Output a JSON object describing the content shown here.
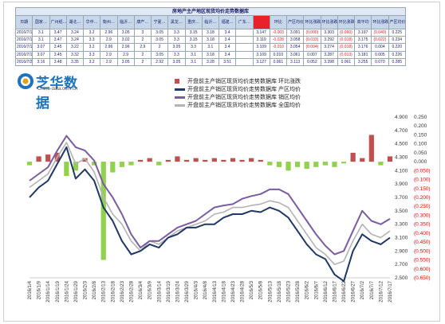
{
  "table": {
    "title": "房地产主产地区现货均价走势数据库",
    "headers": [
      "日期",
      "国家…",
      "广州纸…",
      "湖北…",
      "华中…",
      "衡州…",
      "临沂…",
      "康产…",
      "宁夏…",
      "黑龙…",
      "重庆…",
      "临沂…",
      "福建…",
      "广东…",
      "",
      "环比",
      "产区均价",
      "环比涨跌",
      "环比涨跌",
      "环比涨跌",
      "高平均",
      "环比涨跌",
      "产区均价"
    ],
    "highlight_header_index": 14,
    "rows": [
      [
        "2016/7/14",
        "3.1",
        "3.47",
        "3.24",
        "3.2",
        "2.96",
        "3.05",
        "3",
        "3.05",
        "3.3",
        "3.15",
        "3.18",
        "3.4",
        "",
        "3.147",
        "-0.003",
        "3.091",
        "(0.000)",
        "3.303",
        "(0.060)",
        "3.197",
        "(0.040)",
        "0.225"
      ],
      [
        "2016/7/15",
        "3.1",
        "3.47",
        "3.24",
        "3.3",
        "2.9",
        "3.02",
        "2",
        "3.05",
        "3.3",
        "3.15",
        "3.18",
        "3.4",
        "",
        "3.119",
        "-0.028",
        "3.058",
        "(0.033)",
        "3.292",
        "(0.018)",
        "3.175",
        "(0.022)",
        "0.234"
      ],
      [
        "2016/7/18",
        "3.07",
        "3.45",
        "3.22",
        "3.2",
        "2.96",
        "2.96",
        "2.9",
        "2",
        "3.05",
        "3.3",
        "3.1",
        "3.4",
        "",
        "3.109",
        "-0.010",
        "3.054",
        "(0.004)",
        "3.274",
        "(0.018)",
        "3.176",
        "0.004",
        "0.220"
      ],
      [
        "2016/7/19",
        "3.07",
        "3.45",
        "3.32",
        "3.3",
        "2.9",
        "2.9",
        "2",
        "3.05",
        "3.3",
        "3.1",
        "3.18",
        "3.4",
        "",
        "3.109",
        "0.010",
        "3.061",
        "0.007",
        "3.287",
        "(0.013)",
        "3.181",
        "0.005",
        "0.226"
      ],
      [
        "2016/7/20",
        "3.16",
        "3.48",
        "3.35",
        "3.2",
        "2.9",
        "3.05",
        "2",
        "2.92",
        "3.05",
        "3.1",
        "3.28",
        "3.51",
        "",
        "3.127",
        "0.061",
        "3.113",
        "0.052",
        "3.398",
        "0.061",
        "3.255",
        "0.070",
        "0.285"
      ]
    ]
  },
  "logo": {
    "name": "芝华数据",
    "url": "China-data.com.cn"
  },
  "legend": [
    {
      "label": "开盘前主产销区现货均价走势数据库 环比涨跌",
      "color": "#c0504d",
      "kind": "bar"
    },
    {
      "label": "开盘前主产销区现货均价走势数据库 产区均价",
      "color": "#1f3864",
      "kind": "line"
    },
    {
      "label": "开盘前主产销区现货均价走势数据库 销区均价",
      "color": "#7a5ca0",
      "kind": "line"
    },
    {
      "label": "开盘前主产销区现货均价走势数据库 全国均价",
      "color": "#b3b3b3",
      "kind": "line"
    }
  ],
  "colors": {
    "up": "#c0504d",
    "down": "#92d050",
    "producer": "#1f3864",
    "consumer": "#7a5ca0",
    "national": "#b3b3b3",
    "right_neg": "#ff0000"
  },
  "chart_data": {
    "type": "line",
    "title": "",
    "x_labels": [
      "2016/1/4",
      "2016/1/9",
      "2016/1/14",
      "2016/1/19",
      "2016/1/24",
      "2016/1/29",
      "2016/2/3",
      "2016/2/8",
      "2016/2/13",
      "2016/2/18",
      "2016/2/23",
      "2016/2/28",
      "2016/3/4",
      "2016/3/9",
      "2016/3/14",
      "2016/3/19",
      "2016/3/24",
      "2016/3/29",
      "2016/4/3",
      "2016/4/8",
      "2016/4/13",
      "2016/4/18",
      "2016/4/23",
      "2016/4/28",
      "2016/5/3",
      "2016/5/8",
      "2016/5/13",
      "2016/5/18",
      "2016/5/23",
      "2016/5/28",
      "2016/6/2",
      "2016/6/7",
      "2016/6/12",
      "2016/6/17",
      "2016/6/22",
      "2016/6/27",
      "2016/7/2",
      "2016/7/7",
      "2016/7/12",
      "2016/7/17"
    ],
    "y_left": {
      "ticks": [
        "2.500",
        "2.700",
        "2.900",
        "3.100",
        "3.300",
        "3.500",
        "3.700",
        "3.900",
        "4.100",
        "4.300",
        "4.500",
        "4.700",
        "4.900"
      ],
      "range": [
        2.5,
        4.9
      ]
    },
    "y_right": {
      "ticks": [
        "0.250",
        "0.200",
        "0.150",
        "0.100",
        "0.050",
        "0.000",
        "(0.050)",
        "(0.100)",
        "(0.150)",
        "(0.200)",
        "(0.250)",
        "(0.300)",
        "(0.350)",
        "(0.400)",
        "(0.450)",
        "(0.500)",
        "(0.550)",
        "(0.600)",
        "(0.650)"
      ],
      "range": [
        -0.65,
        0.25
      ]
    },
    "x": [
      0,
      5,
      10,
      15,
      20,
      25,
      30,
      35,
      40,
      45,
      50,
      55,
      60,
      65,
      70,
      75,
      80,
      85,
      90,
      95,
      100,
      105,
      110,
      115,
      120,
      125,
      130,
      135,
      140,
      145,
      150,
      155,
      160,
      165,
      170,
      175,
      180,
      185,
      190,
      195
    ],
    "series": [
      {
        "name": "开盘前主产销区现货均价走势数据库 产区均价",
        "axis": "left",
        "values": [
          3.7,
          3.85,
          3.95,
          4.2,
          4.45,
          3.98,
          4.12,
          3.95,
          3.55,
          3.35,
          3.05,
          2.85,
          2.9,
          3.0,
          2.95,
          3.1,
          3.15,
          3.25,
          3.25,
          3.3,
          3.3,
          3.4,
          3.45,
          3.45,
          3.5,
          3.48,
          3.55,
          3.5,
          3.4,
          3.2,
          3.0,
          2.85,
          2.78,
          2.55,
          2.45,
          2.9,
          3.15,
          3.05,
          3.0,
          3.1
        ]
      },
      {
        "name": "开盘前主产销区现货均价走势数据库 销区均价",
        "axis": "left",
        "values": [
          3.95,
          4.05,
          4.15,
          4.4,
          4.62,
          4.45,
          4.4,
          4.25,
          3.9,
          3.7,
          3.45,
          3.15,
          2.95,
          3.05,
          3.05,
          3.15,
          3.25,
          3.3,
          3.35,
          3.45,
          3.55,
          3.58,
          3.6,
          3.68,
          3.72,
          3.75,
          3.82,
          3.82,
          3.75,
          3.55,
          3.35,
          3.15,
          2.98,
          2.85,
          2.9,
          3.2,
          3.5,
          3.35,
          3.3,
          3.38
        ]
      },
      {
        "name": "开盘前主产销区现货均价走势数据库 全国均价",
        "axis": "left",
        "values": [
          3.85,
          3.95,
          4.05,
          4.3,
          4.52,
          4.2,
          4.28,
          4.08,
          3.7,
          3.45,
          3.3,
          3.05,
          2.9,
          3.05,
          3.0,
          3.1,
          3.2,
          3.25,
          3.3,
          3.35,
          3.45,
          3.48,
          3.55,
          3.55,
          3.58,
          3.6,
          3.65,
          3.62,
          3.55,
          3.35,
          3.15,
          2.95,
          2.85,
          2.7,
          2.75,
          3.05,
          3.3,
          3.15,
          3.1,
          3.2
        ]
      },
      {
        "name": "开盘前主产销区现货均价走势数据库 环比涨跌",
        "axis": "right",
        "type": "bar",
        "values": [
          -0.02,
          0.03,
          0.04,
          0.05,
          -0.08,
          -0.05,
          0.02,
          -0.02,
          -0.55,
          -0.06,
          -0.03,
          -0.02,
          0.01,
          0.02,
          -0.02,
          0.01,
          0.03,
          0.01,
          0.02,
          0.01,
          0.02,
          0.01,
          0.02,
          0.01,
          0.02,
          0.01,
          -0.02,
          -0.03,
          -0.05,
          -0.03,
          -0.04,
          -0.03,
          -0.02,
          -0.03,
          -0.01,
          0.05,
          0.02,
          0.15,
          -0.02,
          0.03
        ]
      }
    ]
  }
}
